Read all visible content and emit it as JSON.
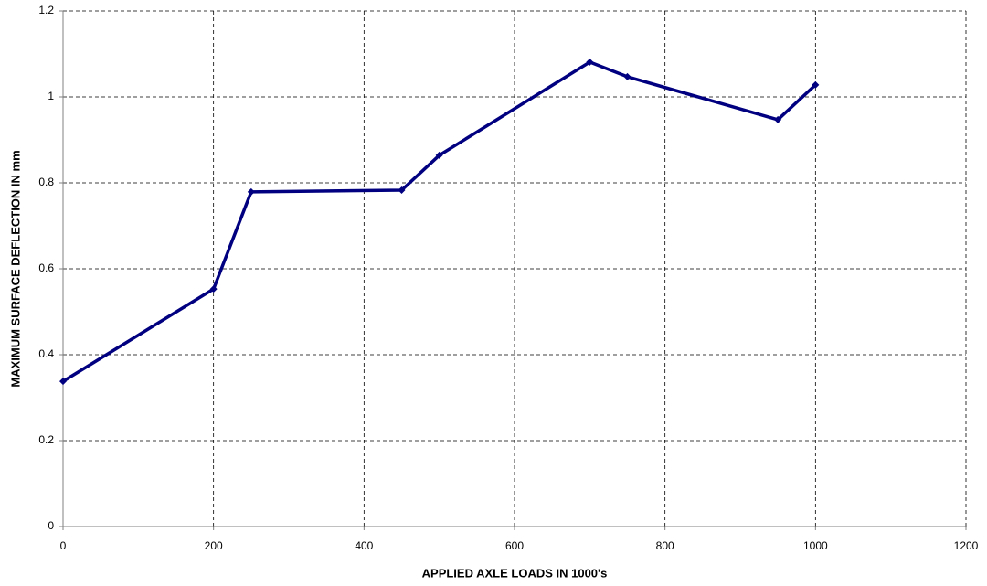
{
  "chart_data": {
    "type": "line",
    "x_label": "APPLIED AXLE LOADS IN 1000's",
    "y_label": "MAXIMUM SURFACE DEFLECTION IN mm",
    "x": [
      0,
      200,
      250,
      450,
      500,
      700,
      750,
      950,
      1000
    ],
    "series": [
      {
        "name": "deflection",
        "color": "#000080",
        "values": [
          0.338,
          0.553,
          0.779,
          0.783,
          0.864,
          1.081,
          1.047,
          0.947,
          1.028
        ]
      }
    ],
    "xlim": [
      0,
      1200
    ],
    "xticks": [
      0,
      200,
      400,
      600,
      800,
      1000,
      1200
    ],
    "ylim": [
      0,
      1.2
    ],
    "yticks": [
      0,
      0.2,
      0.4,
      0.6,
      0.8,
      1,
      1.2
    ],
    "grid": true
  }
}
